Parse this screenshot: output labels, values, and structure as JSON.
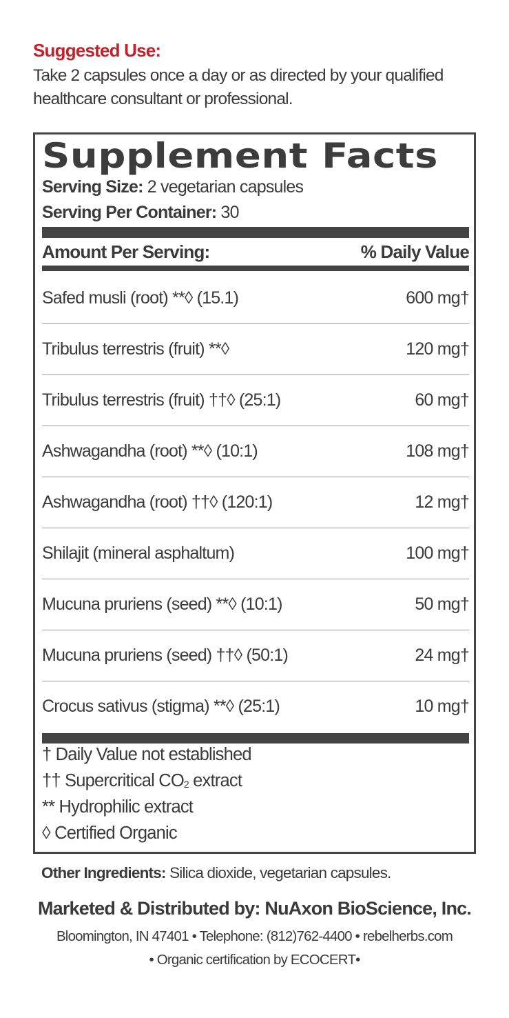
{
  "suggested_use": {
    "title": "Suggested Use:",
    "lines": [
      "Take 2 capsules once a day or as directed by your qualified",
      "healthcare consultant or professional."
    ]
  },
  "facts": {
    "title": "Supplement Facts",
    "serving_size_label": "Serving Size:",
    "serving_size_value": "2 vegetarian capsules",
    "servings_label": "Serving Per Container:",
    "servings_value": "30",
    "header_left": "Amount Per Serving:",
    "header_right": "% Daily Value",
    "rows": [
      {
        "name": "Safed musli (root) **◊ (15.1)",
        "amount": "600 mg†"
      },
      {
        "name": "Tribulus terrestris (fruit) **◊",
        "amount": "120 mg†"
      },
      {
        "name": "Tribulus terrestris (fruit) ††◊ (25:1)",
        "amount": "60 mg†"
      },
      {
        "name": "Ashwagandha (root) **◊ (10:1)",
        "amount": "108 mg†"
      },
      {
        "name": "Ashwagandha (root) ††◊ (120:1)",
        "amount": "12 mg†"
      },
      {
        "name": "Shilajit (mineral asphaltum)",
        "amount": "100 mg†"
      },
      {
        "name": "Mucuna pruriens (seed) **◊ (10:1)",
        "amount": "50 mg†"
      },
      {
        "name": "Mucuna pruriens (seed) ††◊ (50:1)",
        "amount": "24 mg†"
      },
      {
        "name": "Crocus sativus (stigma) **◊  (25:1)",
        "amount": "10 mg†"
      }
    ],
    "footnotes": {
      "f1": "† Daily Value not established",
      "f2_pre": "†† Supercritical CO",
      "f2_sub": "2",
      "f2_post": " extract",
      "f3": "** Hydrophilic extract",
      "f4": "◊ Certified Organic"
    }
  },
  "other_ingredients": {
    "label": "Other Ingredients:",
    "value": "Silica dioxide, vegetarian capsules."
  },
  "distributor": {
    "line": "Marketed & Distributed by: NuAxon BioScience, Inc.",
    "address": "Bloomington, IN 47401 • Telephone: (812)762-4400 • rebelherbs.com",
    "certification": "• Organic certification by ECOCERT•"
  },
  "colors": {
    "accent_red": "#c4202b",
    "text": "#3a3a3a",
    "rule": "#444444"
  }
}
